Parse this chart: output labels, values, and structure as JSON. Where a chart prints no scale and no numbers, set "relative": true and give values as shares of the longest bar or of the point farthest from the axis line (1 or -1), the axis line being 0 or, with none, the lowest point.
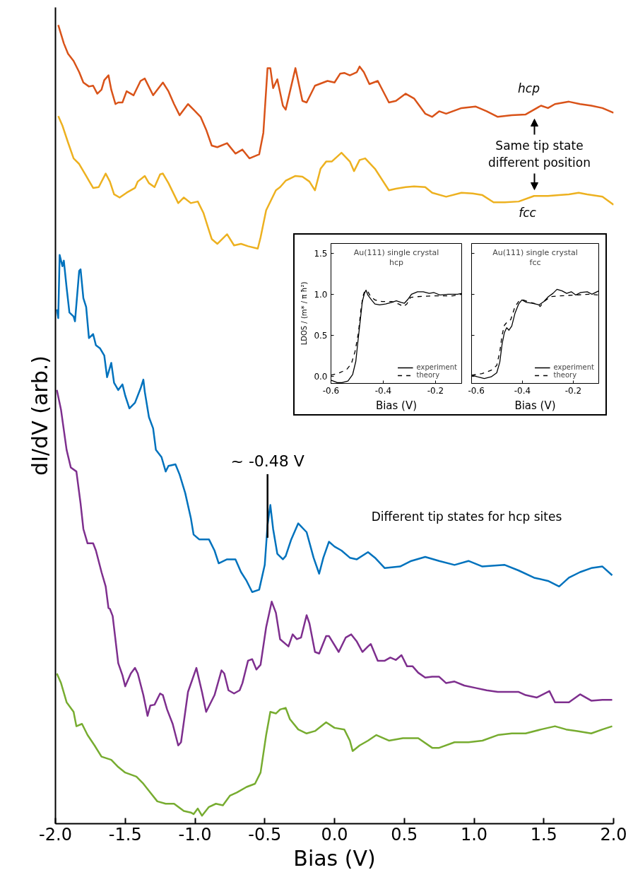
{
  "chart_data": [
    {
      "type": "line",
      "xlabel": "Bias (V)",
      "ylabel": "dI/dV (arb.)",
      "relative": true,
      "grid": false,
      "legend": false,
      "xlim": [
        -2,
        2
      ],
      "xticks": [
        {
          "value": -2,
          "label": "-2.0"
        },
        {
          "value": -1.5,
          "label": "-1.5"
        },
        {
          "value": -1,
          "label": "-1.0"
        },
        {
          "value": -0.5,
          "label": "-0.5"
        },
        {
          "value": 0,
          "label": "0.0"
        },
        {
          "value": 0.5,
          "label": "0.5"
        },
        {
          "value": 1,
          "label": "1.0"
        },
        {
          "value": 1.5,
          "label": "1.5"
        },
        {
          "value": 2,
          "label": "2.0"
        }
      ],
      "annotations": [
        "hcp",
        "Same tip state\ndifferent position",
        "fcc",
        {
          "text": "~ -0.48 V",
          "x": -0.48,
          "y": 0.358
        },
        "Different tip states for hcp sites"
      ],
      "series": [
        {
          "color": "#d95319",
          "x": [
            -1.98,
            -1.94,
            -1.91,
            -1.87,
            -1.83,
            -1.8,
            -1.76,
            -1.73,
            -1.7,
            -1.67,
            -1.65,
            -1.62,
            -1.6,
            -1.57,
            -1.55,
            -1.52,
            -1.49,
            -1.44,
            -1.39,
            -1.36,
            -1.3,
            -1.27,
            -1.23,
            -1.19,
            -1.15,
            -1.11,
            -1.05,
            -1.01,
            -0.96,
            -0.92,
            -0.88,
            -0.84,
            -0.77,
            -0.71,
            -0.66,
            -0.61,
            -0.54,
            -0.51,
            -0.48,
            -0.46,
            -0.44,
            -0.41,
            -0.37,
            -0.35,
            -0.28,
            -0.23,
            -0.2,
            -0.14,
            -0.05,
            0.0,
            0.04,
            0.07,
            0.11,
            0.16,
            0.18,
            0.21,
            0.25,
            0.31,
            0.39,
            0.44,
            0.51,
            0.57,
            0.65,
            0.7,
            0.75,
            0.8,
            0.91,
            1.01,
            1.09,
            1.17,
            1.27,
            1.37,
            1.43,
            1.48,
            1.53,
            1.58,
            1.68,
            1.76,
            1.84,
            1.92,
            2.0
          ],
          "values": [
            1.0,
            0.977,
            0.964,
            0.955,
            0.941,
            0.928,
            0.923,
            0.924,
            0.914,
            0.919,
            0.931,
            0.937,
            0.919,
            0.901,
            0.903,
            0.903,
            0.917,
            0.912,
            0.93,
            0.933,
            0.912,
            0.919,
            0.928,
            0.917,
            0.901,
            0.887,
            0.901,
            0.894,
            0.885,
            0.869,
            0.849,
            0.847,
            0.852,
            0.839,
            0.844,
            0.833,
            0.838,
            0.865,
            0.946,
            0.946,
            0.921,
            0.932,
            0.899,
            0.894,
            0.946,
            0.905,
            0.903,
            0.924,
            0.93,
            0.928,
            0.939,
            0.94,
            0.937,
            0.941,
            0.948,
            0.941,
            0.926,
            0.93,
            0.903,
            0.905,
            0.914,
            0.908,
            0.889,
            0.885,
            0.892,
            0.889,
            0.896,
            0.898,
            0.892,
            0.885,
            0.887,
            0.888,
            0.894,
            0.899,
            0.896,
            0.901,
            0.904,
            0.901,
            0.899,
            0.896,
            0.89
          ]
        },
        {
          "color": "#edb120",
          "x": [
            -1.98,
            -1.95,
            -1.91,
            -1.87,
            -1.83,
            -1.78,
            -1.73,
            -1.69,
            -1.64,
            -1.61,
            -1.58,
            -1.54,
            -1.49,
            -1.43,
            -1.41,
            -1.36,
            -1.33,
            -1.29,
            -1.25,
            -1.23,
            -1.19,
            -1.12,
            -1.08,
            -1.03,
            -0.98,
            -0.94,
            -0.9,
            -0.88,
            -0.84,
            -0.77,
            -0.72,
            -0.67,
            -0.62,
            -0.55,
            -0.53,
            -0.49,
            -0.42,
            -0.39,
            -0.35,
            -0.28,
            -0.23,
            -0.18,
            -0.14,
            -0.1,
            -0.06,
            -0.02,
            0.05,
            0.11,
            0.14,
            0.18,
            0.22,
            0.29,
            0.39,
            0.44,
            0.51,
            0.57,
            0.65,
            0.7,
            0.8,
            0.91,
            0.99,
            1.06,
            1.14,
            1.22,
            1.32,
            1.43,
            1.53,
            1.61,
            1.68,
            1.75,
            1.81,
            1.92,
            2.0
          ],
          "values": [
            0.886,
            0.874,
            0.853,
            0.833,
            0.826,
            0.811,
            0.796,
            0.797,
            0.814,
            0.804,
            0.788,
            0.784,
            0.79,
            0.796,
            0.804,
            0.811,
            0.802,
            0.797,
            0.813,
            0.814,
            0.802,
            0.777,
            0.784,
            0.777,
            0.779,
            0.765,
            0.743,
            0.732,
            0.726,
            0.738,
            0.724,
            0.726,
            0.723,
            0.72,
            0.734,
            0.768,
            0.793,
            0.797,
            0.805,
            0.811,
            0.81,
            0.804,
            0.793,
            0.82,
            0.829,
            0.829,
            0.84,
            0.829,
            0.817,
            0.831,
            0.833,
            0.82,
            0.793,
            0.795,
            0.797,
            0.798,
            0.797,
            0.79,
            0.785,
            0.79,
            0.789,
            0.787,
            0.778,
            0.778,
            0.779,
            0.786,
            0.786,
            0.787,
            0.788,
            0.79,
            0.788,
            0.785,
            0.775
          ]
        },
        {
          "color": "#0072bd",
          "x": [
            -1.99,
            -1.98,
            -1.97,
            -1.95,
            -1.94,
            -1.92,
            -1.9,
            -1.87,
            -1.86,
            -1.83,
            -1.82,
            -1.8,
            -1.78,
            -1.76,
            -1.73,
            -1.71,
            -1.68,
            -1.65,
            -1.63,
            -1.6,
            -1.58,
            -1.55,
            -1.52,
            -1.5,
            -1.47,
            -1.43,
            -1.39,
            -1.37,
            -1.36,
            -1.33,
            -1.3,
            -1.28,
            -1.24,
            -1.21,
            -1.19,
            -1.14,
            -1.11,
            -1.07,
            -1.03,
            -1.01,
            -0.97,
            -0.9,
            -0.86,
            -0.83,
            -0.77,
            -0.71,
            -0.67,
            -0.63,
            -0.59,
            -0.54,
            -0.5,
            -0.48,
            -0.46,
            -0.44,
            -0.41,
            -0.37,
            -0.35,
            -0.31,
            -0.26,
            -0.2,
            -0.15,
            -0.11,
            -0.08,
            -0.04,
            0.0,
            0.05,
            0.11,
            0.16,
            0.24,
            0.29,
            0.36,
            0.47,
            0.55,
            0.65,
            0.75,
            0.86,
            0.96,
            1.06,
            1.22,
            1.32,
            1.43,
            1.53,
            1.61,
            1.68,
            1.76,
            1.84,
            1.92,
            1.99
          ],
          "values": [
            0.644,
            0.633,
            0.712,
            0.698,
            0.705,
            0.671,
            0.64,
            0.635,
            0.629,
            0.692,
            0.694,
            0.658,
            0.647,
            0.608,
            0.613,
            0.599,
            0.595,
            0.586,
            0.559,
            0.577,
            0.552,
            0.543,
            0.55,
            0.536,
            0.52,
            0.527,
            0.545,
            0.556,
            0.541,
            0.509,
            0.495,
            0.468,
            0.459,
            0.441,
            0.448,
            0.45,
            0.437,
            0.414,
            0.383,
            0.362,
            0.356,
            0.356,
            0.342,
            0.326,
            0.331,
            0.331,
            0.315,
            0.304,
            0.29,
            0.293,
            0.324,
            0.374,
            0.399,
            0.369,
            0.338,
            0.331,
            0.335,
            0.356,
            0.376,
            0.365,
            0.333,
            0.313,
            0.333,
            0.353,
            0.347,
            0.342,
            0.333,
            0.331,
            0.34,
            0.333,
            0.32,
            0.322,
            0.329,
            0.334,
            0.329,
            0.324,
            0.329,
            0.322,
            0.324,
            0.317,
            0.308,
            0.304,
            0.297,
            0.308,
            0.315,
            0.32,
            0.322,
            0.311
          ]
        },
        {
          "color": "#7e2f8e",
          "x": [
            -1.99,
            -1.96,
            -1.92,
            -1.89,
            -1.85,
            -1.82,
            -1.8,
            -1.77,
            -1.73,
            -1.71,
            -1.67,
            -1.64,
            -1.62,
            -1.61,
            -1.59,
            -1.55,
            -1.52,
            -1.5,
            -1.46,
            -1.43,
            -1.41,
            -1.37,
            -1.34,
            -1.32,
            -1.29,
            -1.25,
            -1.23,
            -1.2,
            -1.16,
            -1.12,
            -1.1,
            -1.05,
            -0.99,
            -0.95,
            -0.92,
            -0.86,
            -0.81,
            -0.79,
            -0.76,
            -0.72,
            -0.68,
            -0.66,
            -0.62,
            -0.59,
            -0.56,
            -0.53,
            -0.49,
            -0.45,
            -0.42,
            -0.39,
            -0.33,
            -0.3,
            -0.27,
            -0.24,
            -0.2,
            -0.18,
            -0.14,
            -0.11,
            -0.06,
            -0.04,
            0.03,
            0.08,
            0.12,
            0.16,
            0.2,
            0.24,
            0.26,
            0.31,
            0.36,
            0.4,
            0.44,
            0.48,
            0.52,
            0.56,
            0.6,
            0.65,
            0.7,
            0.75,
            0.8,
            0.86,
            0.93,
            1.01,
            1.09,
            1.17,
            1.24,
            1.32,
            1.37,
            1.45,
            1.54,
            1.58,
            1.68,
            1.76,
            1.84,
            1.92,
            1.99
          ],
          "values": [
            0.543,
            0.518,
            0.468,
            0.446,
            0.441,
            0.401,
            0.369,
            0.351,
            0.351,
            0.342,
            0.315,
            0.297,
            0.27,
            0.269,
            0.26,
            0.201,
            0.186,
            0.172,
            0.188,
            0.195,
            0.188,
            0.161,
            0.135,
            0.148,
            0.149,
            0.163,
            0.161,
            0.143,
            0.125,
            0.098,
            0.102,
            0.165,
            0.195,
            0.165,
            0.14,
            0.161,
            0.192,
            0.188,
            0.167,
            0.163,
            0.167,
            0.176,
            0.204,
            0.206,
            0.193,
            0.199,
            0.246,
            0.278,
            0.264,
            0.231,
            0.222,
            0.237,
            0.231,
            0.233,
            0.261,
            0.251,
            0.215,
            0.213,
            0.235,
            0.235,
            0.215,
            0.233,
            0.237,
            0.228,
            0.215,
            0.222,
            0.225,
            0.204,
            0.204,
            0.208,
            0.205,
            0.211,
            0.197,
            0.197,
            0.189,
            0.183,
            0.184,
            0.184,
            0.176,
            0.178,
            0.173,
            0.17,
            0.167,
            0.165,
            0.165,
            0.165,
            0.161,
            0.158,
            0.166,
            0.152,
            0.152,
            0.162,
            0.154,
            0.155,
            0.155
          ]
        },
        {
          "color": "#77ac30",
          "x": [
            -1.99,
            -1.96,
            -1.92,
            -1.87,
            -1.85,
            -1.81,
            -1.77,
            -1.72,
            -1.67,
            -1.6,
            -1.55,
            -1.5,
            -1.42,
            -1.37,
            -1.32,
            -1.27,
            -1.21,
            -1.15,
            -1.08,
            -1.03,
            -1.01,
            -0.98,
            -0.95,
            -0.9,
            -0.85,
            -0.8,
            -0.75,
            -0.7,
            -0.63,
            -0.57,
            -0.53,
            -0.49,
            -0.46,
            -0.42,
            -0.39,
            -0.35,
            -0.32,
            -0.26,
            -0.2,
            -0.14,
            -0.06,
            0.0,
            0.07,
            0.11,
            0.13,
            0.18,
            0.24,
            0.3,
            0.39,
            0.49,
            0.6,
            0.7,
            0.75,
            0.86,
            0.96,
            1.06,
            1.17,
            1.27,
            1.37,
            1.48,
            1.58,
            1.66,
            1.74,
            1.84,
            1.92,
            1.99
          ],
          "values": [
            0.188,
            0.176,
            0.152,
            0.14,
            0.122,
            0.125,
            0.111,
            0.098,
            0.084,
            0.08,
            0.071,
            0.064,
            0.059,
            0.05,
            0.039,
            0.028,
            0.025,
            0.025,
            0.016,
            0.014,
            0.012,
            0.019,
            0.01,
            0.021,
            0.025,
            0.023,
            0.035,
            0.039,
            0.046,
            0.05,
            0.064,
            0.111,
            0.14,
            0.138,
            0.143,
            0.145,
            0.131,
            0.118,
            0.113,
            0.116,
            0.127,
            0.12,
            0.118,
            0.104,
            0.091,
            0.098,
            0.104,
            0.111,
            0.104,
            0.107,
            0.107,
            0.095,
            0.095,
            0.102,
            0.102,
            0.104,
            0.111,
            0.113,
            0.113,
            0.118,
            0.122,
            0.118,
            0.116,
            0.113,
            0.118,
            0.122
          ]
        }
      ]
    },
    {
      "type": "line",
      "title": "Au(111) single crystal",
      "subtitle": "hcp",
      "xlabel": "Bias (V)",
      "ylabel": "LDOS / (m* / π ħ²)",
      "legend": "bottom right",
      "xlim": [
        -0.6,
        -0.1
      ],
      "ylim": [
        -0.09,
        1.62
      ],
      "xticks": [
        {
          "value": -0.6,
          "label": "-0.6"
        },
        {
          "value": -0.4,
          "label": "-0.4"
        },
        {
          "value": -0.2,
          "label": "-0.2"
        }
      ],
      "yticks": [
        {
          "value": 0,
          "label": "0.0"
        },
        {
          "value": 0.5,
          "label": "0.5"
        },
        {
          "value": 1,
          "label": "1.0"
        },
        {
          "value": 1.5,
          "label": "1.5"
        }
      ],
      "series": [
        {
          "name": "experiment",
          "color": "#000000",
          "line_style": "solid",
          "x": [
            -0.6,
            -0.576,
            -0.558,
            -0.535,
            -0.517,
            -0.505,
            -0.496,
            -0.487,
            -0.48,
            -0.472,
            -0.466,
            -0.459,
            -0.445,
            -0.432,
            -0.414,
            -0.391,
            -0.368,
            -0.35,
            -0.332,
            -0.319,
            -0.305,
            -0.292,
            -0.269,
            -0.247,
            -0.224,
            -0.206,
            -0.184,
            -0.152,
            -0.116,
            -0.1
          ],
          "values": [
            -0.05,
            -0.08,
            -0.08,
            -0.06,
            0.02,
            0.18,
            0.45,
            0.71,
            0.91,
            1.01,
            1.05,
            0.99,
            0.93,
            0.88,
            0.87,
            0.88,
            0.9,
            0.92,
            0.9,
            0.89,
            0.94,
            1.0,
            1.03,
            1.03,
            1.01,
            1.02,
            0.99,
            1.0,
            1.0,
            1.01
          ]
        },
        {
          "name": "theory",
          "color": "#000000",
          "line_style": "dashed",
          "x": [
            -0.6,
            -0.567,
            -0.54,
            -0.522,
            -0.508,
            -0.495,
            -0.486,
            -0.478,
            -0.472,
            -0.46,
            -0.45,
            -0.432,
            -0.405,
            -0.368,
            -0.341,
            -0.323,
            -0.31,
            -0.296,
            -0.269,
            -0.206,
            -0.134,
            -0.1
          ],
          "values": [
            0.01,
            0.04,
            0.08,
            0.15,
            0.3,
            0.53,
            0.8,
            0.97,
            1.03,
            1.04,
            0.98,
            0.93,
            0.91,
            0.91,
            0.88,
            0.85,
            0.88,
            0.96,
            0.97,
            0.98,
            0.98,
            1.0
          ]
        }
      ]
    },
    {
      "type": "line",
      "title": "Au(111) single crystal",
      "subtitle": "fcc",
      "xlabel": "Bias (V)",
      "legend": "bottom right",
      "tick_labels": "x",
      "xlim": [
        -0.6,
        -0.1
      ],
      "ylim": [
        -0.09,
        1.62
      ],
      "xticks": [
        {
          "value": -0.6,
          "label": "-0.6"
        },
        {
          "value": -0.4,
          "label": "-0.4"
        },
        {
          "value": -0.2,
          "label": "-0.2"
        }
      ],
      "yticks": [
        {
          "value": 0,
          "label": null
        },
        {
          "value": 0.5,
          "label": null
        },
        {
          "value": 1,
          "label": null
        },
        {
          "value": 1.5,
          "label": null
        }
      ],
      "series": [
        {
          "name": "experiment",
          "color": "#000000",
          "line_style": "solid",
          "x": [
            -0.6,
            -0.577,
            -0.55,
            -0.523,
            -0.501,
            -0.489,
            -0.48,
            -0.471,
            -0.462,
            -0.453,
            -0.442,
            -0.429,
            -0.415,
            -0.402,
            -0.384,
            -0.361,
            -0.334,
            -0.316,
            -0.298,
            -0.28,
            -0.264,
            -0.244,
            -0.226,
            -0.208,
            -0.19,
            -0.172,
            -0.145,
            -0.127,
            -0.1
          ],
          "values": [
            0.01,
            -0.01,
            -0.03,
            -0.01,
            0.04,
            0.17,
            0.39,
            0.53,
            0.59,
            0.56,
            0.61,
            0.77,
            0.88,
            0.93,
            0.9,
            0.89,
            0.87,
            0.91,
            0.97,
            1.01,
            1.06,
            1.04,
            1.01,
            1.03,
            0.99,
            1.02,
            1.03,
            1.0,
            1.04
          ]
        },
        {
          "name": "theory",
          "color": "#000000",
          "line_style": "dashed",
          "x": [
            -0.6,
            -0.559,
            -0.523,
            -0.501,
            -0.489,
            -0.48,
            -0.471,
            -0.46,
            -0.446,
            -0.429,
            -0.415,
            -0.397,
            -0.37,
            -0.343,
            -0.33,
            -0.316,
            -0.289,
            -0.253,
            -0.19,
            -0.136,
            -0.1
          ],
          "values": [
            0.01,
            0.03,
            0.07,
            0.13,
            0.3,
            0.5,
            0.62,
            0.66,
            0.69,
            0.85,
            0.91,
            0.93,
            0.9,
            0.88,
            0.85,
            0.91,
            0.97,
            0.98,
            0.99,
            1.0,
            0.99
          ]
        }
      ]
    }
  ]
}
